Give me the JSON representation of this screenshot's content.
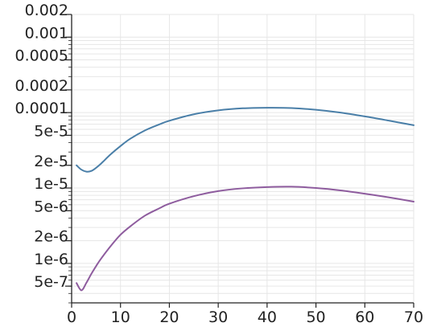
{
  "chart_data": {
    "type": "line",
    "title": "",
    "xlabel": "",
    "ylabel": "",
    "xlim": [
      0,
      70
    ],
    "ylim": [
      3e-07,
      0.002
    ],
    "yscale": "log",
    "grid": true,
    "legend": "none",
    "x_ticks": [
      {
        "value": 0,
        "label": "0"
      },
      {
        "value": 10,
        "label": "10"
      },
      {
        "value": 20,
        "label": "20"
      },
      {
        "value": 30,
        "label": "30"
      },
      {
        "value": 40,
        "label": "40"
      },
      {
        "value": 50,
        "label": "50"
      },
      {
        "value": 60,
        "label": "60"
      },
      {
        "value": 70,
        "label": "70"
      }
    ],
    "y_ticks": [
      {
        "value": 5e-07,
        "label": "5e-7"
      },
      {
        "value": 1e-06,
        "label": "1e-6"
      },
      {
        "value": 2e-06,
        "label": "2e-6"
      },
      {
        "value": 5e-06,
        "label": "5e-6"
      },
      {
        "value": 1e-05,
        "label": "1e-5"
      },
      {
        "value": 2e-05,
        "label": "2e-5"
      },
      {
        "value": 5e-05,
        "label": "5e-5"
      },
      {
        "value": 0.0001,
        "label": "0.0001"
      },
      {
        "value": 0.0002,
        "label": "0.0002"
      },
      {
        "value": 0.0005,
        "label": "0.0005"
      },
      {
        "value": 0.001,
        "label": "0.001"
      },
      {
        "value": 0.002,
        "label": "0.002"
      }
    ],
    "series": [
      {
        "color": "#4a7fa8",
        "x": [
          1,
          2,
          3,
          4,
          5,
          6,
          8,
          10,
          12,
          15,
          18,
          20,
          25,
          30,
          35,
          40,
          45,
          50,
          55,
          60,
          65,
          70
        ],
        "y": [
          2e-05,
          1.75e-05,
          1.65e-05,
          1.68e-05,
          1.85e-05,
          2.1e-05,
          2.8e-05,
          3.6e-05,
          4.5e-05,
          5.8e-05,
          7e-05,
          7.8e-05,
          9.5e-05,
          0.000107,
          0.000114,
          0.000116,
          0.000115,
          0.000109,
          0.0001,
          8.9e-05,
          7.8e-05,
          6.8e-05
        ]
      },
      {
        "color": "#8e5c9e",
        "x": [
          1,
          2,
          3,
          4,
          5,
          6,
          8,
          10,
          12,
          15,
          18,
          20,
          25,
          30,
          35,
          40,
          45,
          50,
          55,
          60,
          65,
          70
        ],
        "y": [
          5.5e-07,
          4.4e-07,
          5.5e-07,
          7.2e-07,
          9.2e-07,
          1.15e-06,
          1.7e-06,
          2.4e-06,
          3.1e-06,
          4.3e-06,
          5.4e-06,
          6.2e-06,
          7.8e-06,
          9.1e-06,
          9.9e-06,
          1.03e-05,
          1.04e-05,
          1e-05,
          9.3e-06,
          8.4e-06,
          7.5e-06,
          6.6e-06
        ]
      }
    ]
  }
}
